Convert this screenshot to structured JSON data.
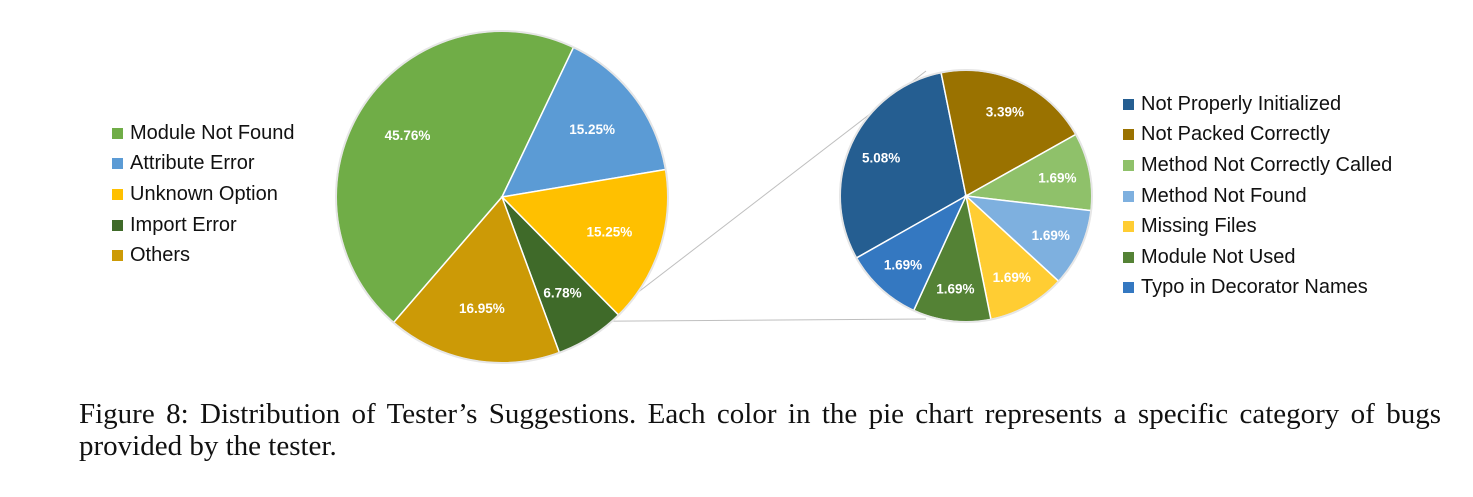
{
  "chart_data": [
    {
      "type": "pie",
      "title": "",
      "slices": [
        {
          "label": "Module Not Found",
          "value": 45.76,
          "value_label": "45.76%",
          "color": "#70AD47"
        },
        {
          "label": "Attribute Error",
          "value": 15.25,
          "value_label": "15.25%",
          "color": "#5B9BD5"
        },
        {
          "label": "Unknown Option",
          "value": 15.25,
          "value_label": "15.25%",
          "color": "#FFC000"
        },
        {
          "label": "Import Error",
          "value": 6.78,
          "value_label": "6.78%",
          "color": "#3F6A29"
        },
        {
          "label": "Others",
          "value": 16.95,
          "value_label": "16.95%",
          "color": "#CC9A06"
        }
      ],
      "legend_position": "left"
    },
    {
      "type": "pie",
      "title": "",
      "breakdown_of": "Others",
      "slices": [
        {
          "label": "Not Properly Initialized",
          "value": 5.08,
          "value_label": "5.08%",
          "color": "#255E91"
        },
        {
          "label": "Not Packed Correctly",
          "value": 3.39,
          "value_label": "3.39%",
          "color": "#9A7200"
        },
        {
          "label": "Method Not Correctly Called",
          "value": 1.69,
          "value_label": "1.69%",
          "color": "#8FC16A"
        },
        {
          "label": "Method Not Found",
          "value": 1.69,
          "value_label": "1.69%",
          "color": "#7EB0DF"
        },
        {
          "label": "Missing Files",
          "value": 1.69,
          "value_label": "1.69%",
          "color": "#FFCD33"
        },
        {
          "label": "Module Not Used",
          "value": 1.69,
          "value_label": "1.69%",
          "color": "#548235"
        },
        {
          "label": "Typo in Decorator Names",
          "value": 1.69,
          "value_label": "1.69%",
          "color": "#3478C1"
        }
      ],
      "legend_position": "right"
    }
  ],
  "caption": "Figure 8: Distribution of Tester’s Suggestions. Each color in the pie chart represents a specific category of bugs provided by the tester."
}
